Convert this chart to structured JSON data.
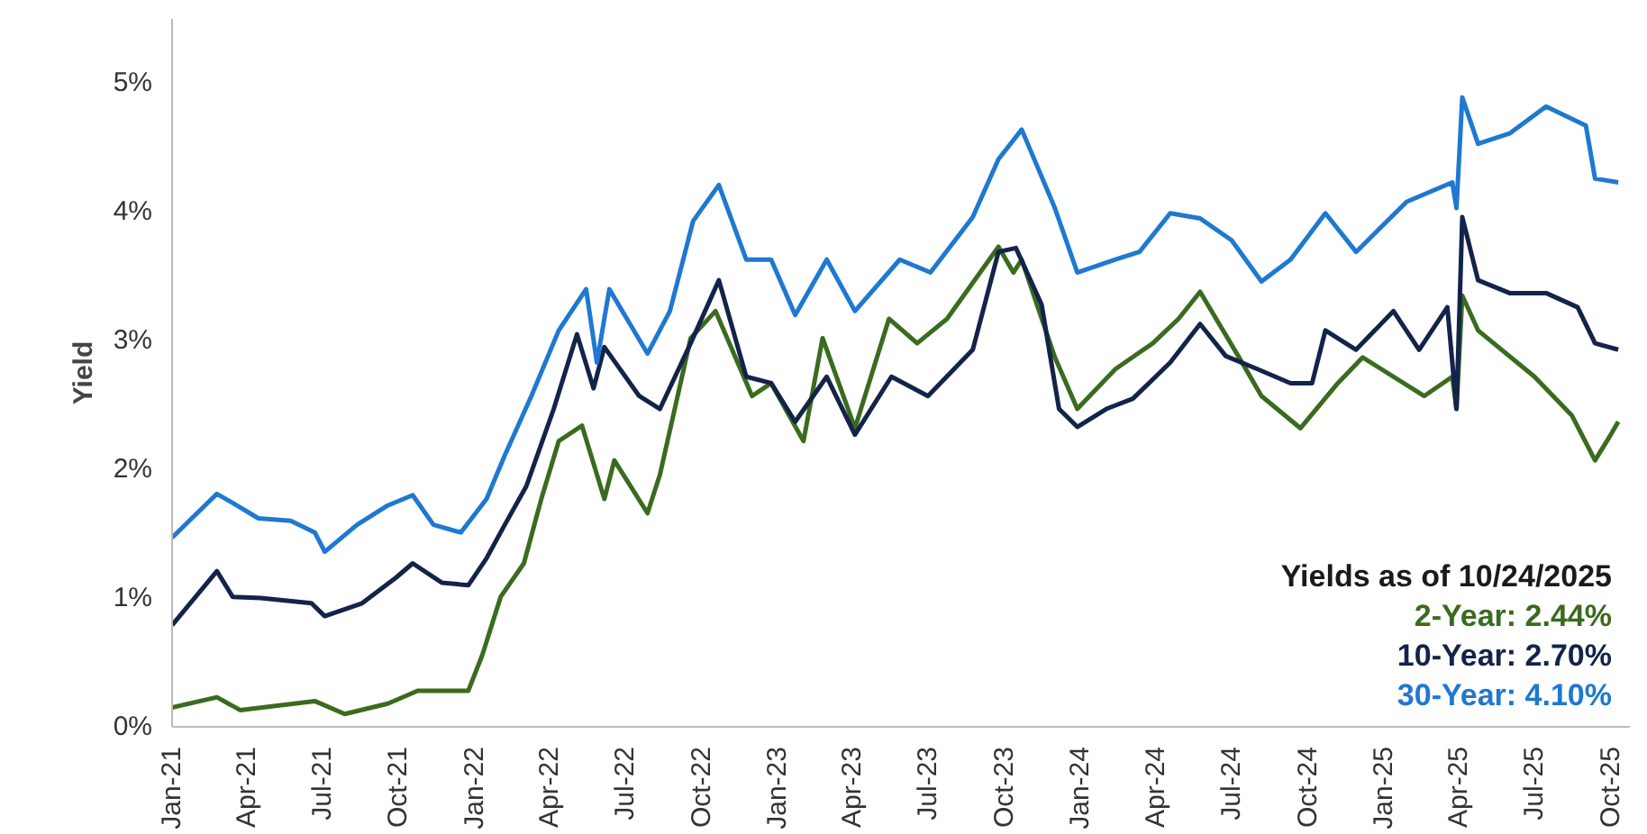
{
  "chart_data": {
    "type": "line",
    "ylabel": "Yield",
    "legend_title": "Yields as of 10/24/2025",
    "legend": "bottom right",
    "grid": false,
    "line_style": "solid",
    "xlim": [
      "2021-01-01",
      "2025-10-24"
    ],
    "xticks": [
      {
        "value": "2021-01-01",
        "label": "Jan-21"
      },
      {
        "value": "2021-04-01",
        "label": "Apr-21"
      },
      {
        "value": "2021-07-01",
        "label": "Jul-21"
      },
      {
        "value": "2021-10-01",
        "label": "Oct-21"
      },
      {
        "value": "2022-01-01",
        "label": "Jan-22"
      },
      {
        "value": "2022-04-01",
        "label": "Apr-22"
      },
      {
        "value": "2022-07-01",
        "label": "Jul-22"
      },
      {
        "value": "2022-10-01",
        "label": "Oct-22"
      },
      {
        "value": "2023-01-01",
        "label": "Jan-23"
      },
      {
        "value": "2023-04-01",
        "label": "Apr-23"
      },
      {
        "value": "2023-07-01",
        "label": "Jul-23"
      },
      {
        "value": "2023-10-01",
        "label": "Oct-23"
      },
      {
        "value": "2024-01-01",
        "label": "Jan-24"
      },
      {
        "value": "2024-04-01",
        "label": "Apr-24"
      },
      {
        "value": "2024-07-01",
        "label": "Jul-24"
      },
      {
        "value": "2024-10-01",
        "label": "Oct-24"
      },
      {
        "value": "2025-01-01",
        "label": "Jan-25"
      },
      {
        "value": "2025-04-01",
        "label": "Apr-25"
      },
      {
        "value": "2025-07-01",
        "label": "Jul-25"
      },
      {
        "value": "2025-10-01",
        "label": "Oct-25"
      }
    ],
    "ylim": [
      0,
      5.5
    ],
    "yticks": [
      {
        "value": 0,
        "label": "0%"
      },
      {
        "value": 1,
        "label": "1%"
      },
      {
        "value": 2,
        "label": "2%"
      },
      {
        "value": 3,
        "label": "3%"
      },
      {
        "value": 4,
        "label": "4%"
      },
      {
        "value": 5,
        "label": "5%"
      }
    ],
    "series": [
      {
        "name": "2-Year: 2.44%",
        "color": "#3a6b1f",
        "x": [
          "2021-01-01",
          "2021-02-24",
          "2021-03-24",
          "2021-06-22",
          "2021-07-28",
          "2021-09-18",
          "2021-10-24",
          "2021-12-24",
          "2022-01-10",
          "2022-02-01",
          "2022-03-01",
          "2022-03-22",
          "2022-04-12",
          "2022-05-10",
          "2022-06-06",
          "2022-06-18",
          "2022-07-28",
          "2022-08-12",
          "2022-09-18",
          "2022-10-18",
          "2022-12-01",
          "2022-12-24",
          "2023-02-01",
          "2023-02-24",
          "2023-04-04",
          "2023-05-15",
          "2023-06-18",
          "2023-07-24",
          "2023-09-24",
          "2023-10-12",
          "2023-10-22",
          "2023-12-01",
          "2023-12-28",
          "2024-02-12",
          "2024-03-28",
          "2024-04-28",
          "2024-05-24",
          "2024-07-10",
          "2024-08-06",
          "2024-09-22",
          "2024-11-06",
          "2024-12-06",
          "2025-02-18",
          "2025-03-24",
          "2025-03-29",
          "2025-04-05",
          "2025-04-24",
          "2025-07-01",
          "2025-08-15",
          "2025-09-12",
          "2025-10-01",
          "2025-10-10"
        ],
        "values": [
          0.15,
          0.23,
          0.13,
          0.2,
          0.1,
          0.18,
          0.28,
          0.28,
          0.56,
          1.01,
          1.27,
          1.77,
          2.22,
          2.34,
          1.77,
          2.07,
          1.66,
          1.96,
          3.02,
          3.23,
          2.57,
          2.67,
          2.22,
          3.02,
          2.32,
          3.17,
          2.98,
          3.17,
          3.73,
          3.53,
          3.63,
          2.87,
          2.47,
          2.78,
          2.98,
          3.17,
          3.38,
          2.87,
          2.57,
          2.32,
          2.67,
          2.87,
          2.57,
          2.72,
          2.47,
          3.35,
          3.08,
          2.72,
          2.42,
          2.07,
          2.27,
          2.37
        ]
      },
      {
        "name": "10-Year: 2.70%",
        "color": "#13234a",
        "x": [
          "2021-01-01",
          "2021-02-24",
          "2021-03-15",
          "2021-04-18",
          "2021-06-18",
          "2021-07-04",
          "2021-08-18",
          "2021-09-28",
          "2021-10-18",
          "2021-11-22",
          "2021-12-24",
          "2022-01-15",
          "2022-02-06",
          "2022-03-04",
          "2022-04-06",
          "2022-05-04",
          "2022-05-24",
          "2022-06-06",
          "2022-07-18",
          "2022-08-12",
          "2022-09-18",
          "2022-10-22",
          "2022-11-24",
          "2022-12-24",
          "2023-01-22",
          "2023-03-01",
          "2023-04-04",
          "2023-05-18",
          "2023-07-01",
          "2023-08-24",
          "2023-09-24",
          "2023-10-15",
          "2023-11-15",
          "2023-12-06",
          "2023-12-28",
          "2024-02-01",
          "2024-03-04",
          "2024-04-18",
          "2024-05-24",
          "2024-06-24",
          "2024-08-01",
          "2024-09-10",
          "2024-10-06",
          "2024-10-22",
          "2024-11-28",
          "2025-01-12",
          "2025-02-12",
          "2025-03-18",
          "2025-03-29",
          "2025-04-05",
          "2025-04-24",
          "2025-06-01",
          "2025-07-15",
          "2025-08-22",
          "2025-09-12",
          "2025-10-10"
        ],
        "values": [
          0.79,
          1.21,
          1.01,
          1.0,
          0.96,
          0.86,
          0.96,
          1.16,
          1.27,
          1.12,
          1.1,
          1.31,
          1.57,
          1.87,
          2.47,
          3.05,
          2.63,
          2.95,
          2.57,
          2.47,
          2.98,
          3.47,
          2.72,
          2.67,
          2.37,
          2.72,
          2.27,
          2.72,
          2.57,
          2.93,
          3.69,
          3.72,
          3.28,
          2.47,
          2.33,
          2.47,
          2.55,
          2.83,
          3.13,
          2.88,
          2.78,
          2.67,
          2.67,
          3.08,
          2.93,
          3.23,
          2.93,
          3.26,
          2.47,
          3.96,
          3.47,
          3.37,
          3.37,
          3.26,
          2.98,
          2.93
        ]
      },
      {
        "name": "30-Year: 4.10%",
        "color": "#1f78d1",
        "x": [
          "2021-01-01",
          "2021-02-24",
          "2021-03-15",
          "2021-04-15",
          "2021-05-24",
          "2021-06-22",
          "2021-07-04",
          "2021-08-12",
          "2021-09-18",
          "2021-10-18",
          "2021-11-12",
          "2021-12-15",
          "2022-01-15",
          "2022-02-06",
          "2022-03-10",
          "2022-04-12",
          "2022-05-15",
          "2022-05-28",
          "2022-06-12",
          "2022-07-28",
          "2022-08-24",
          "2022-09-21",
          "2022-10-22",
          "2022-11-24",
          "2022-12-24",
          "2023-01-22",
          "2023-03-01",
          "2023-04-04",
          "2023-05-28",
          "2023-07-04",
          "2023-08-24",
          "2023-09-24",
          "2023-10-22",
          "2023-12-01",
          "2023-12-28",
          "2024-02-12",
          "2024-03-12",
          "2024-04-18",
          "2024-05-24",
          "2024-07-01",
          "2024-08-06",
          "2024-09-10",
          "2024-10-22",
          "2024-11-28",
          "2025-01-28",
          "2025-03-24",
          "2025-03-29",
          "2025-04-05",
          "2025-04-24",
          "2025-06-01",
          "2025-07-15",
          "2025-09-01",
          "2025-09-12",
          "2025-10-10"
        ],
        "values": [
          1.47,
          1.81,
          1.74,
          1.62,
          1.6,
          1.51,
          1.36,
          1.57,
          1.72,
          1.8,
          1.57,
          1.51,
          1.77,
          2.11,
          2.57,
          3.08,
          3.4,
          2.83,
          3.4,
          2.9,
          3.23,
          3.93,
          4.21,
          3.63,
          3.63,
          3.2,
          3.63,
          3.23,
          3.63,
          3.53,
          3.96,
          4.41,
          4.64,
          4.03,
          3.53,
          3.63,
          3.69,
          3.99,
          3.95,
          3.78,
          3.46,
          3.63,
          3.99,
          3.69,
          4.08,
          4.23,
          4.03,
          4.89,
          4.53,
          4.61,
          4.82,
          4.67,
          4.26,
          4.23
        ]
      }
    ]
  }
}
